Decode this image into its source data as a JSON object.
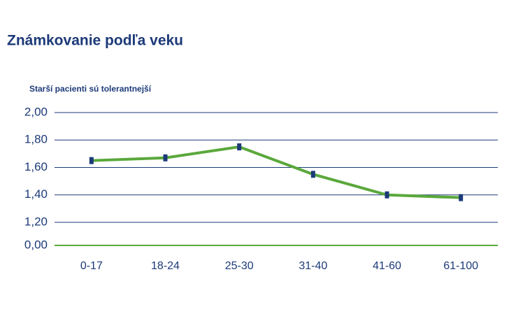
{
  "chart_data": {
    "type": "line",
    "title": "Známkovanie podľa veku",
    "subtitle": "Starší pacienti sú tolerantnejší",
    "categories": [
      "0-17",
      "18-24",
      "25-30",
      "31-40",
      "41-60",
      "61-100"
    ],
    "series": [
      {
        "color": "#5aa83c",
        "values": [
          1.65,
          1.67,
          1.75,
          1.55,
          1.4,
          1.38
        ]
      }
    ],
    "ylim": [
      0,
      2
    ],
    "axis_break": [
      0,
      1.2
    ],
    "yticks": [
      {
        "value": 0,
        "label": "0,00"
      },
      {
        "value": 1.2,
        "label": "1,20"
      },
      {
        "value": 1.4,
        "label": "1,40"
      },
      {
        "value": 1.6,
        "label": "1,60"
      },
      {
        "value": 1.8,
        "label": "1,80"
      },
      {
        "value": 2,
        "label": "2,00"
      }
    ],
    "grid": true
  }
}
